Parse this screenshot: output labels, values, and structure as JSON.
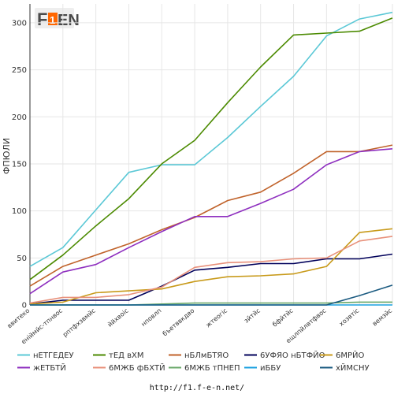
{
  "logo": {
    "text": "F1EN",
    "main_color": "#ff6600",
    "accent_color": "#4a4a4a"
  },
  "footer": {
    "url": "http://f1.f-e-n.net/"
  },
  "chart_data": {
    "type": "line",
    "title": "",
    "xlabel": "",
    "ylabel": "ФПЮЛИ",
    "ylim": [
      0,
      320
    ],
    "yticks": [
      0,
      50,
      100,
      150,
      200,
      250,
      300
    ],
    "grid": true,
    "legend_position": "bottom",
    "categories": [
      "ввитеко",
      "еніймйс-тпнвос",
      "рптфхзвмйс",
      "ййхвоіс",
      "нповлп",
      "бъетввкдво",
      "жтеогіс",
      "зйтйс",
      "бфйтйс",
      "ещлпйлвтфвос",
      "хозвтіс",
      "вемзйс"
    ],
    "series": [
      {
        "name": "нЕТГЕДЕУ",
        "color": "#5bc8d6",
        "values": [
          41,
          61,
          101,
          141,
          149,
          149,
          178,
          211,
          243,
          286,
          304,
          311
        ]
      },
      {
        "name": "тЕД вХМ",
        "color": "#4b8a00",
        "values": [
          27,
          53,
          84,
          113,
          150,
          175,
          215,
          253,
          287,
          289,
          291,
          305
        ]
      },
      {
        "name": "нБЛмБТЯО",
        "color": "#c0622a",
        "values": [
          20,
          41,
          53,
          65,
          80,
          93,
          111,
          120,
          140,
          163,
          163,
          170
        ]
      },
      {
        "name": "6УФЯО нБТФЙО",
        "color": "#00005a",
        "values": [
          1,
          5,
          5,
          5,
          20,
          37,
          40,
          44,
          44,
          49,
          49,
          54
        ]
      },
      {
        "name": "6МРЙО",
        "color": "#c89a1a",
        "values": [
          1,
          3,
          13,
          15,
          17,
          25,
          30,
          31,
          33,
          41,
          77,
          81
        ]
      },
      {
        "name": "жЕТБТЙ",
        "color": "#8e2fbf",
        "values": [
          12,
          35,
          43,
          61,
          78,
          94,
          94,
          108,
          123,
          149,
          163,
          166
        ]
      },
      {
        "name": "6МЖБ фБХТЙ",
        "color": "#e8907a",
        "values": [
          2,
          8,
          8,
          11,
          19,
          40,
          45,
          46,
          49,
          50,
          68,
          73
        ]
      },
      {
        "name": "6МЖБ тПНЕП",
        "color": "#6aa86a",
        "values": [
          0,
          0,
          0,
          0,
          1,
          2,
          2,
          2,
          2,
          2,
          3,
          3
        ]
      },
      {
        "name": "иББУ",
        "color": "#1aa0e0",
        "values": [
          0,
          0,
          0,
          0,
          0,
          0,
          0,
          0,
          0,
          0,
          0,
          0
        ]
      },
      {
        "name": "хЙМСНУ",
        "color": "#1a5a80",
        "values": [
          0,
          0,
          0,
          0,
          0,
          0,
          0,
          0,
          0,
          0,
          10,
          21
        ]
      }
    ]
  }
}
